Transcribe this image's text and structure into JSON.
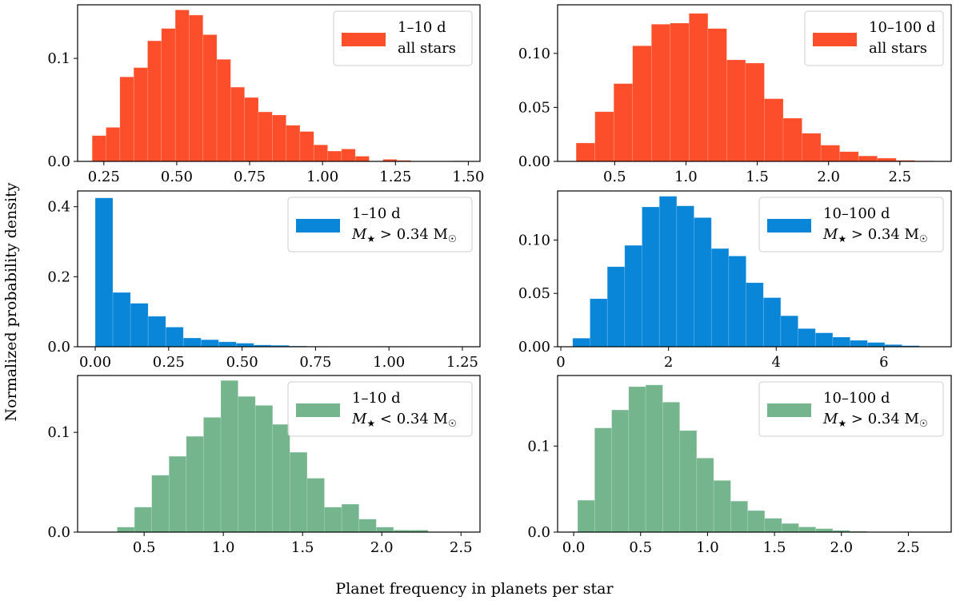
{
  "figure": {
    "ylabel": "Normalized probability density",
    "xlabel": "Planet frequency in planets per star"
  },
  "chart_data": [
    {
      "type": "bar",
      "legend": [
        "1–10 d",
        "all stars"
      ],
      "color": "#fc4e2a",
      "xlim": [
        0.16,
        1.54
      ],
      "ylim": [
        0,
        0.152
      ],
      "xticks": [
        0.25,
        0.5,
        0.75,
        1.0,
        1.25,
        1.5
      ],
      "xtick_labels": [
        "0.25",
        "0.50",
        "0.75",
        "1.00",
        "1.25",
        "1.50"
      ],
      "yticks": [
        0.0,
        0.1
      ],
      "ytick_labels": [
        "0.0",
        "0.1"
      ],
      "bin_edges": [
        0.21,
        0.2575,
        0.305,
        0.3525,
        0.4,
        0.4475,
        0.495,
        0.5425,
        0.59,
        0.6375,
        0.685,
        0.7325,
        0.78,
        0.8275,
        0.875,
        0.9225,
        0.97,
        1.0175,
        1.065,
        1.1125,
        1.16,
        1.2075,
        1.255,
        1.3025,
        1.35,
        1.3975,
        1.445,
        1.4925
      ],
      "values": [
        0.025,
        0.033,
        0.082,
        0.091,
        0.117,
        0.129,
        0.147,
        0.142,
        0.123,
        0.099,
        0.072,
        0.062,
        0.048,
        0.045,
        0.035,
        0.029,
        0.016,
        0.01,
        0.012,
        0.005,
        0.0,
        0.002,
        0.001,
        0.0,
        0.0,
        0.0,
        0.0005
      ]
    },
    {
      "type": "bar",
      "legend": [
        "10–100 d",
        "all stars"
      ],
      "color": "#fc4e2a",
      "xlim": [
        0.1,
        2.86
      ],
      "ylim": [
        0,
        0.145
      ],
      "xticks": [
        0.5,
        1.0,
        1.5,
        2.0,
        2.5
      ],
      "xtick_labels": [
        "0.5",
        "1.0",
        "1.5",
        "2.0",
        "2.5"
      ],
      "yticks": [
        0.0,
        0.05,
        0.1
      ],
      "ytick_labels": [
        "0.00",
        "0.05",
        "0.10"
      ],
      "bin_edges": [
        0.23,
        0.362,
        0.494,
        0.626,
        0.758,
        0.89,
        1.022,
        1.154,
        1.286,
        1.418,
        1.55,
        1.682,
        1.814,
        1.946,
        2.078,
        2.21,
        2.342,
        2.474,
        2.606,
        2.738
      ],
      "values": [
        0.017,
        0.046,
        0.072,
        0.107,
        0.127,
        0.128,
        0.137,
        0.123,
        0.094,
        0.091,
        0.058,
        0.04,
        0.026,
        0.015,
        0.009,
        0.005,
        0.003,
        0.001,
        0.0005
      ]
    },
    {
      "type": "bar",
      "legend": [
        "1–10 d",
        "M★ > 0.34 M☉"
      ],
      "color": "#0a86d8",
      "xlim": [
        -0.06,
        1.31
      ],
      "ylim": [
        0,
        0.445
      ],
      "xticks": [
        0.0,
        0.25,
        0.5,
        0.75,
        1.0,
        1.25
      ],
      "xtick_labels": [
        "0.00",
        "0.25",
        "0.50",
        "0.75",
        "1.00",
        "1.25"
      ],
      "yticks": [
        0.0,
        0.2,
        0.4
      ],
      "ytick_labels": [
        "0.0",
        "0.2",
        "0.4"
      ],
      "bin_edges": [
        0.0,
        0.06,
        0.12,
        0.18,
        0.24,
        0.3,
        0.36,
        0.42,
        0.48,
        0.54,
        0.6,
        0.66,
        0.72,
        0.78,
        0.84,
        0.9,
        0.96,
        1.02,
        1.08,
        1.14,
        1.2,
        1.26
      ],
      "values": [
        0.425,
        0.155,
        0.124,
        0.087,
        0.056,
        0.025,
        0.02,
        0.014,
        0.01,
        0.005,
        0.004,
        0.002,
        0.001,
        0.001,
        0.0005,
        0.0,
        0.0,
        0.0,
        0.0,
        0.0,
        0.0
      ]
    },
    {
      "type": "bar",
      "legend": [
        "10–100 d",
        "M★ > 0.34 M☉"
      ],
      "color": "#0a86d8",
      "xlim": [
        -0.06,
        7.25
      ],
      "ylim": [
        0,
        0.146
      ],
      "xticks": [
        0,
        2,
        4,
        6
      ],
      "xtick_labels": [
        "0",
        "2",
        "4",
        "6"
      ],
      "yticks": [
        0.0,
        0.05,
        0.1
      ],
      "ytick_labels": [
        "0.00",
        "0.05",
        "0.10"
      ],
      "bin_edges": [
        0.22,
        0.542,
        0.864,
        1.186,
        1.508,
        1.83,
        2.152,
        2.474,
        2.796,
        3.118,
        3.44,
        3.762,
        4.084,
        4.406,
        4.728,
        5.05,
        5.372,
        5.694,
        6.016,
        6.338,
        6.66
      ],
      "values": [
        0.008,
        0.045,
        0.075,
        0.095,
        0.131,
        0.141,
        0.132,
        0.121,
        0.092,
        0.085,
        0.06,
        0.046,
        0.029,
        0.017,
        0.013,
        0.009,
        0.006,
        0.004,
        0.002,
        0.001
      ]
    },
    {
      "type": "bar",
      "legend": [
        "1–10 d",
        "M★ < 0.34 M☉"
      ],
      "color": "#74b58e",
      "xlim": [
        0.08,
        2.62
      ],
      "ylim": [
        0,
        0.157
      ],
      "xticks": [
        0.5,
        1.0,
        1.5,
        2.0,
        2.5
      ],
      "xtick_labels": [
        "0.5",
        "1.0",
        "1.5",
        "2.0",
        "2.5"
      ],
      "yticks": [
        0.0,
        0.1
      ],
      "ytick_labels": [
        "0.0",
        "0.1"
      ],
      "bin_edges": [
        0.33,
        0.439,
        0.548,
        0.657,
        0.766,
        0.875,
        0.984,
        1.093,
        1.202,
        1.311,
        1.42,
        1.529,
        1.638,
        1.747,
        1.856,
        1.965,
        2.074,
        2.183,
        2.292
      ],
      "values": [
        0.005,
        0.025,
        0.057,
        0.076,
        0.096,
        0.115,
        0.152,
        0.136,
        0.127,
        0.108,
        0.08,
        0.054,
        0.025,
        0.028,
        0.013,
        0.005,
        0.002,
        0.002
      ]
    },
    {
      "type": "bar",
      "legend": [
        "10–100 d",
        "M★ > 0.34 M☉"
      ],
      "color": "#74b58e",
      "xlim": [
        -0.12,
        2.82
      ],
      "ylim": [
        0,
        0.182
      ],
      "xticks": [
        0.0,
        0.5,
        1.0,
        1.5,
        2.0,
        2.5
      ],
      "xtick_labels": [
        "0.0",
        "0.5",
        "1.0",
        "1.5",
        "2.0",
        "2.5"
      ],
      "yticks": [
        0.0,
        0.1
      ],
      "ytick_labels": [
        "0.0",
        "0.1"
      ],
      "bin_edges": [
        0.03,
        0.157,
        0.284,
        0.411,
        0.538,
        0.665,
        0.792,
        0.919,
        1.046,
        1.173,
        1.3,
        1.427,
        1.554,
        1.681,
        1.808,
        1.935,
        2.062,
        2.189
      ],
      "values": [
        0.037,
        0.121,
        0.142,
        0.169,
        0.171,
        0.151,
        0.118,
        0.086,
        0.06,
        0.036,
        0.025,
        0.016,
        0.01,
        0.006,
        0.004,
        0.002,
        0.001
      ]
    }
  ]
}
